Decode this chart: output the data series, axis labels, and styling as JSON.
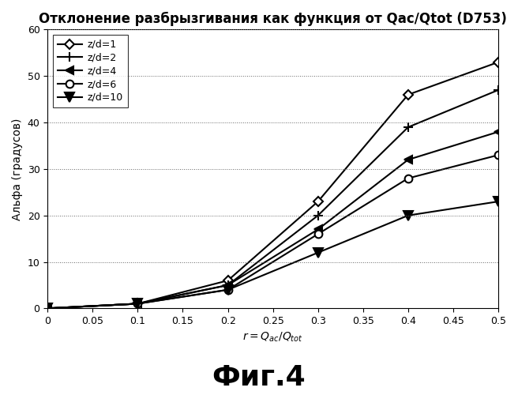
{
  "title": "Отклонение разбрызгивания как функция от Qac/Qtot (D753)",
  "xlabel": "$r=Q_{ac}/Q_{tot}$",
  "ylabel": "Альфа (градусов)",
  "caption": "Фиг.4",
  "xlim": [
    0,
    0.5
  ],
  "ylim": [
    0,
    60
  ],
  "x_ticks": [
    0,
    0.05,
    0.1,
    0.15,
    0.2,
    0.25,
    0.3,
    0.35,
    0.4,
    0.45,
    0.5
  ],
  "y_ticks": [
    0,
    10,
    20,
    30,
    40,
    50,
    60
  ],
  "series": [
    {
      "label": "z/d=1",
      "x": [
        0,
        0.1,
        0.2,
        0.3,
        0.4,
        0.5
      ],
      "y": [
        0,
        1,
        6,
        23,
        46,
        53
      ],
      "marker": "D",
      "markersize": 6,
      "fillstyle": "none"
    },
    {
      "label": "z/d=2",
      "x": [
        0,
        0.1,
        0.2,
        0.3,
        0.4,
        0.5
      ],
      "y": [
        0,
        1,
        5,
        20,
        39,
        47
      ],
      "marker": "+",
      "markersize": 9,
      "fillstyle": "full"
    },
    {
      "label": "z/d=4",
      "x": [
        0,
        0.1,
        0.2,
        0.3,
        0.4,
        0.5
      ],
      "y": [
        0,
        1,
        5,
        17,
        32,
        38
      ],
      "marker": "<",
      "markersize": 7,
      "fillstyle": "full"
    },
    {
      "label": "z/d=6",
      "x": [
        0,
        0.1,
        0.2,
        0.3,
        0.4,
        0.5
      ],
      "y": [
        0,
        1,
        4,
        16,
        28,
        33
      ],
      "marker": "o",
      "markersize": 7,
      "fillstyle": "none"
    },
    {
      "label": "z/d=10",
      "x": [
        0,
        0.1,
        0.2,
        0.3,
        0.4,
        0.5
      ],
      "y": [
        0,
        1,
        4,
        12,
        20,
        23
      ],
      "marker": "v",
      "markersize": 8,
      "fillstyle": "full"
    }
  ],
  "line_color": "#000000",
  "background_color": "#ffffff",
  "grid_color": "#666666",
  "title_fontsize": 12,
  "axis_label_fontsize": 10,
  "tick_fontsize": 9,
  "legend_fontsize": 9,
  "caption_fontsize": 26
}
